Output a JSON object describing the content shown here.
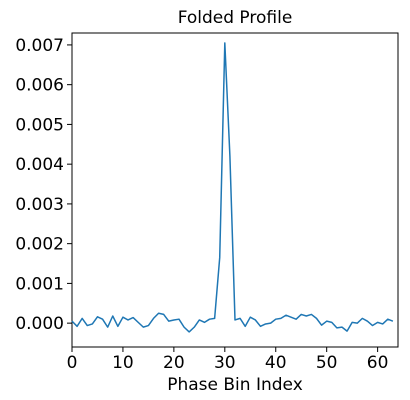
{
  "chart_data": {
    "type": "line",
    "title": "Folded Profile",
    "xlabel": "Phase Bin Index",
    "ylabel": "",
    "xlim": [
      0,
      64
    ],
    "ylim": [
      -0.0006,
      0.0073
    ],
    "xticks": [
      0,
      10,
      20,
      30,
      40,
      50,
      60
    ],
    "xtick_labels": [
      "0",
      "10",
      "20",
      "30",
      "40",
      "50",
      "60"
    ],
    "yticks": [
      0.0,
      0.001,
      0.002,
      0.003,
      0.004,
      0.005,
      0.006,
      0.007
    ],
    "ytick_labels": [
      "0.000",
      "0.001",
      "0.002",
      "0.003",
      "0.004",
      "0.005",
      "0.006",
      "0.007"
    ],
    "grid": false,
    "legend": false,
    "series": [
      {
        "color": "#1f77b4",
        "x": [
          0,
          1,
          2,
          3,
          4,
          5,
          6,
          7,
          8,
          9,
          10,
          11,
          12,
          13,
          14,
          15,
          16,
          17,
          18,
          19,
          20,
          21,
          22,
          23,
          24,
          25,
          26,
          27,
          28,
          29,
          30,
          31,
          32,
          33,
          34,
          35,
          36,
          37,
          38,
          39,
          40,
          41,
          42,
          43,
          44,
          45,
          46,
          47,
          48,
          49,
          50,
          51,
          52,
          53,
          54,
          55,
          56,
          57,
          58,
          59,
          60,
          61,
          62,
          63
        ],
        "y": [
          5e-05,
          -8e-05,
          0.00012,
          -6e-05,
          -2e-05,
          0.00016,
          0.0001,
          -0.0001,
          0.00018,
          -8e-05,
          0.00015,
          8e-05,
          0.00014,
          2e-05,
          -0.0001,
          -6e-05,
          0.00012,
          0.00025,
          0.00022,
          5e-05,
          8e-05,
          0.0001,
          -0.0001,
          -0.00022,
          -0.0001,
          8e-05,
          2e-05,
          0.0001,
          0.00012,
          0.00165,
          0.00705,
          0.0042,
          8e-05,
          0.00012,
          -8e-05,
          0.00015,
          8e-05,
          -8e-05,
          -2e-05,
          0.0,
          0.0001,
          0.00012,
          0.0002,
          0.00015,
          0.0001,
          0.00022,
          0.00018,
          0.00022,
          0.00012,
          -5e-05,
          5e-05,
          2e-05,
          -0.00012,
          -0.0001,
          -0.0002,
          2e-05,
          0.0,
          0.00012,
          5e-05,
          -6e-05,
          2e-05,
          -2e-05,
          0.0001,
          5e-05
        ]
      }
    ]
  }
}
